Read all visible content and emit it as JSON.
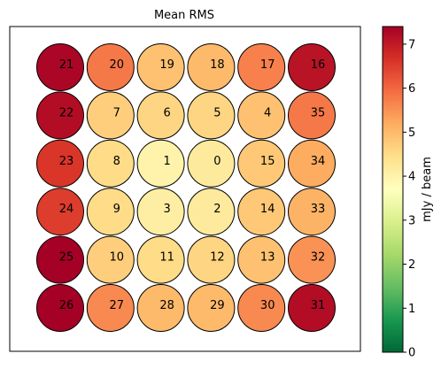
{
  "chart_data": {
    "type": "heatmap",
    "title": "Mean RMS",
    "colorbar": {
      "label": "mJy / beam",
      "range": [
        0,
        7.4
      ],
      "ticks": [
        "0",
        "1",
        "2",
        "3",
        "4",
        "5",
        "6",
        "7"
      ],
      "colormap": "RdYlGn_r",
      "colormap_stops": [
        "#006837",
        "#1a9850",
        "#66bd63",
        "#a6d96a",
        "#d9ef8b",
        "#ffffbf",
        "#fee08b",
        "#fdae61",
        "#f46d43",
        "#d73027",
        "#a50026"
      ]
    },
    "beams": [
      {
        "id": "21",
        "row": 0,
        "col": 0,
        "value": 7.3
      },
      {
        "id": "20",
        "row": 0,
        "col": 1,
        "value": 5.8
      },
      {
        "id": "19",
        "row": 0,
        "col": 2,
        "value": 4.9
      },
      {
        "id": "18",
        "row": 0,
        "col": 3,
        "value": 5.0
      },
      {
        "id": "17",
        "row": 0,
        "col": 4,
        "value": 5.7
      },
      {
        "id": "16",
        "row": 0,
        "col": 5,
        "value": 7.1
      },
      {
        "id": "22",
        "row": 1,
        "col": 0,
        "value": 7.2
      },
      {
        "id": "7",
        "row": 1,
        "col": 1,
        "value": 4.7
      },
      {
        "id": "6",
        "row": 1,
        "col": 2,
        "value": 4.6
      },
      {
        "id": "5",
        "row": 1,
        "col": 3,
        "value": 4.6
      },
      {
        "id": "4",
        "row": 1,
        "col": 4,
        "value": 4.9
      },
      {
        "id": "35",
        "row": 1,
        "col": 5,
        "value": 5.8
      },
      {
        "id": "23",
        "row": 2,
        "col": 0,
        "value": 6.6
      },
      {
        "id": "8",
        "row": 2,
        "col": 1,
        "value": 4.5
      },
      {
        "id": "1",
        "row": 2,
        "col": 2,
        "value": 4.0
      },
      {
        "id": "0",
        "row": 2,
        "col": 3,
        "value": 4.2
      },
      {
        "id": "15",
        "row": 2,
        "col": 4,
        "value": 4.8
      },
      {
        "id": "34",
        "row": 2,
        "col": 5,
        "value": 5.2
      },
      {
        "id": "24",
        "row": 3,
        "col": 0,
        "value": 6.5
      },
      {
        "id": "9",
        "row": 3,
        "col": 1,
        "value": 4.5
      },
      {
        "id": "3",
        "row": 3,
        "col": 2,
        "value": 4.1
      },
      {
        "id": "2",
        "row": 3,
        "col": 3,
        "value": 4.2
      },
      {
        "id": "14",
        "row": 3,
        "col": 4,
        "value": 4.8
      },
      {
        "id": "33",
        "row": 3,
        "col": 5,
        "value": 5.1
      },
      {
        "id": "25",
        "row": 4,
        "col": 0,
        "value": 7.4
      },
      {
        "id": "10",
        "row": 4,
        "col": 1,
        "value": 4.7
      },
      {
        "id": "11",
        "row": 4,
        "col": 2,
        "value": 4.5
      },
      {
        "id": "12",
        "row": 4,
        "col": 3,
        "value": 4.6
      },
      {
        "id": "13",
        "row": 4,
        "col": 4,
        "value": 4.9
      },
      {
        "id": "32",
        "row": 4,
        "col": 5,
        "value": 5.5
      },
      {
        "id": "26",
        "row": 5,
        "col": 0,
        "value": 7.4
      },
      {
        "id": "27",
        "row": 5,
        "col": 1,
        "value": 5.6
      },
      {
        "id": "28",
        "row": 5,
        "col": 2,
        "value": 5.0
      },
      {
        "id": "29",
        "row": 5,
        "col": 3,
        "value": 5.0
      },
      {
        "id": "30",
        "row": 5,
        "col": 4,
        "value": 5.6
      },
      {
        "id": "31",
        "row": 5,
        "col": 5,
        "value": 7.2
      }
    ]
  }
}
